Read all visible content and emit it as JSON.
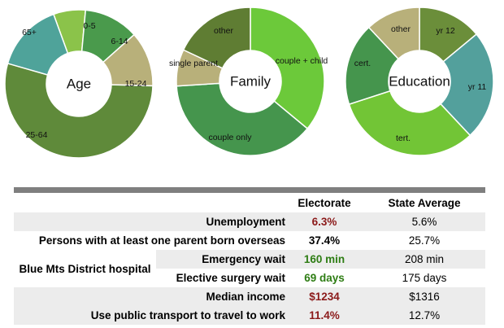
{
  "chart_data": [
    {
      "type": "pie",
      "title": "Age",
      "categories": [
        "0-5",
        "6-14",
        "15-24",
        "25-64",
        "65+"
      ],
      "values": [
        7,
        12,
        12,
        54,
        15
      ],
      "colors": [
        "#8bc34a",
        "#4a9a4c",
        "#b8b07a",
        "#5f8a3a",
        "#4fa39a"
      ]
    },
    {
      "type": "pie",
      "title": "Family",
      "categories": [
        "couple + child",
        "couple only",
        "single parent",
        "other"
      ],
      "values": [
        36,
        38,
        8,
        18
      ],
      "colors": [
        "#6cc93a",
        "#45954d",
        "#b8b07a",
        "#5f7d33"
      ]
    },
    {
      "type": "pie",
      "title": "Education",
      "categories": [
        "yr 12",
        "yr 11",
        "tert.",
        "cert.",
        "other"
      ],
      "values": [
        14,
        24,
        32,
        18,
        12
      ],
      "colors": [
        "#6b8e3a",
        "#53a09c",
        "#72c536",
        "#45954d",
        "#b8b07a"
      ]
    }
  ],
  "table": {
    "headers": [
      "",
      "",
      "Electorate",
      "State Average"
    ],
    "group_label": "Blue Mts District hospital",
    "rows": [
      {
        "label": "Unemployment",
        "electorate": "6.3%",
        "state": "5.6%",
        "color": "red"
      },
      {
        "label": "Persons with at least one parent born overseas",
        "electorate": "37.4%",
        "state": "25.7%",
        "color": "black"
      },
      {
        "label": "Emergency wait",
        "electorate": "160 min",
        "state": "208 min",
        "color": "green"
      },
      {
        "label": "Elective surgery wait",
        "electorate": "69 days",
        "state": "175 days",
        "color": "green"
      },
      {
        "label": "Median income",
        "electorate": "$1234",
        "state": "$1316",
        "color": "red"
      },
      {
        "label": "Use public transport to travel to work",
        "electorate": "11.4%",
        "state": "12.7%",
        "color": "red"
      }
    ]
  }
}
